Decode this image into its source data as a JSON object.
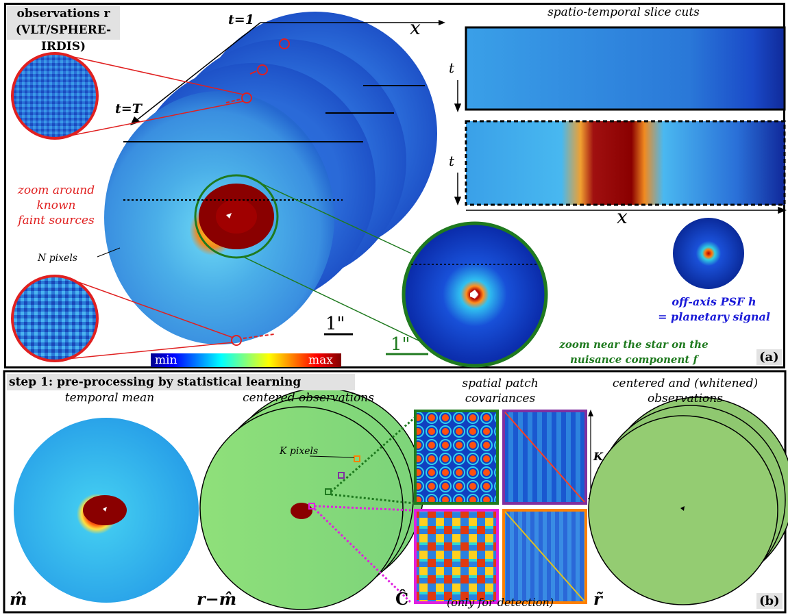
{
  "panel_a": {
    "title_line1": "observations r",
    "title_line2": "(VLT/SPHERE-IRDIS)",
    "t_start": "t=1",
    "t_end": "t=T",
    "axis_x": "x",
    "zoom_sources": [
      "zoom around",
      "known",
      "faint sources"
    ],
    "n_pixels": "N pixels",
    "scale_bar": "1\"",
    "scale_bar_zoom": "1\"",
    "colorbar_min": "min",
    "colorbar_max": "max",
    "slice_title": "spatio-temporal slice cuts",
    "slice_t_top": "t",
    "slice_t_bottom": "t",
    "slice_x": "x",
    "psf_caption": [
      "off-axis PSF h",
      "= planetary signal"
    ],
    "nuisance_caption": [
      "zoom near the star on the",
      "nuisance component f"
    ],
    "tag": "(a)"
  },
  "panel_b": {
    "title": "step 1: pre-processing by statistical learning",
    "temporal_mean": "temporal mean",
    "centered_obs": "centered observations",
    "k_pixels": "K pixels",
    "patch_cov_1": "spatial patch",
    "patch_cov_2": "covariances",
    "k_label": "K",
    "whitened_1": "centered and (whitened)",
    "whitened_2": "observations",
    "label_m": "m̂",
    "label_r_minus_m": "r−m̂",
    "label_c": "Ĉ",
    "label_r_tilde": "r̃",
    "only_detection": "(only for detection)",
    "tag": "(b)"
  },
  "colors": {
    "jet_blue": "#1a4fd8",
    "jet_cyan": "#4fc0f0",
    "jet_red": "#8b0000",
    "green_accent": "#1f7a1f",
    "red_accent": "#e02020",
    "magenta": "#e020e0",
    "orange": "#ff8000",
    "purple": "#8030a0"
  }
}
